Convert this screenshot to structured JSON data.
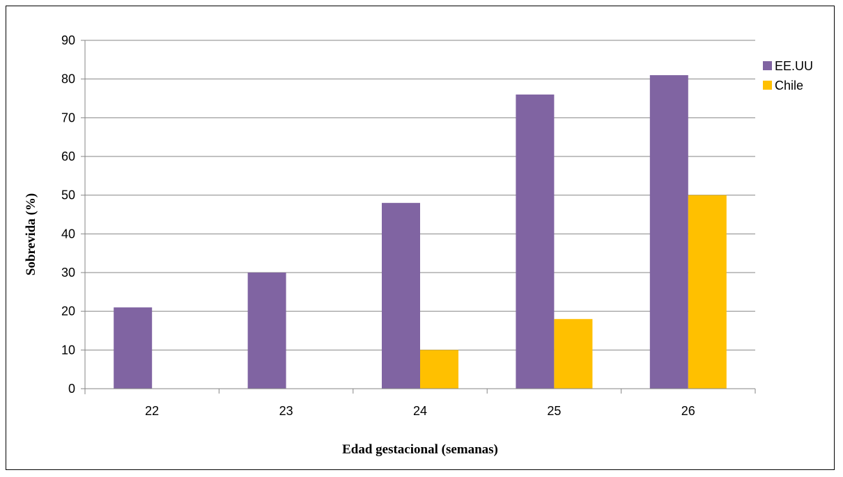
{
  "chart_data": {
    "type": "bar",
    "categories": [
      "22",
      "23",
      "24",
      "25",
      "26"
    ],
    "series": [
      {
        "name": "EE.UU",
        "values": [
          21,
          30,
          48,
          76,
          81
        ],
        "color": "#8064A2"
      },
      {
        "name": "Chile",
        "values": [
          0,
          0,
          10,
          18,
          50
        ],
        "color": "#FFC000"
      }
    ],
    "xlabel": "Edad gestacional (semanas)",
    "ylabel": "Sobrevida (%)",
    "ylim": [
      0,
      90
    ],
    "yticks": [
      0,
      10,
      20,
      30,
      40,
      50,
      60,
      70,
      80,
      90
    ],
    "grid": true,
    "legend_position": "top-right"
  }
}
